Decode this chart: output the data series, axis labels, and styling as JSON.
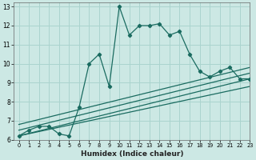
{
  "xlabel": "Humidex (Indice chaleur)",
  "bg_color": "#cce8e4",
  "line_color": "#1a6b60",
  "grid_color": "#aad4ce",
  "xlim": [
    -0.5,
    23
  ],
  "ylim": [
    6,
    13.2
  ],
  "xticks": [
    0,
    1,
    2,
    3,
    4,
    5,
    6,
    7,
    8,
    9,
    10,
    11,
    12,
    13,
    14,
    15,
    16,
    17,
    18,
    19,
    20,
    21,
    22,
    23
  ],
  "yticks": [
    6,
    7,
    8,
    9,
    10,
    11,
    12,
    13
  ],
  "main_x": [
    0,
    1,
    2,
    3,
    4,
    5,
    6,
    7,
    8,
    9,
    10,
    11,
    12,
    13,
    14,
    15,
    16,
    17,
    18,
    19,
    20,
    21,
    22,
    23
  ],
  "main_y": [
    6.2,
    6.5,
    6.7,
    6.7,
    6.3,
    6.2,
    7.7,
    10.0,
    10.5,
    8.8,
    13.0,
    11.5,
    12.0,
    12.0,
    12.1,
    11.5,
    11.7,
    10.5,
    9.6,
    9.3,
    9.6,
    9.8,
    9.2,
    9.2
  ],
  "ref_lines": [
    {
      "x": [
        0,
        23
      ],
      "y": [
        6.2,
        9.2
      ]
    },
    {
      "x": [
        0,
        23
      ],
      "y": [
        6.2,
        8.8
      ]
    },
    {
      "x": [
        0,
        23
      ],
      "y": [
        6.5,
        9.5
      ]
    },
    {
      "x": [
        0,
        23
      ],
      "y": [
        6.8,
        9.8
      ]
    }
  ]
}
